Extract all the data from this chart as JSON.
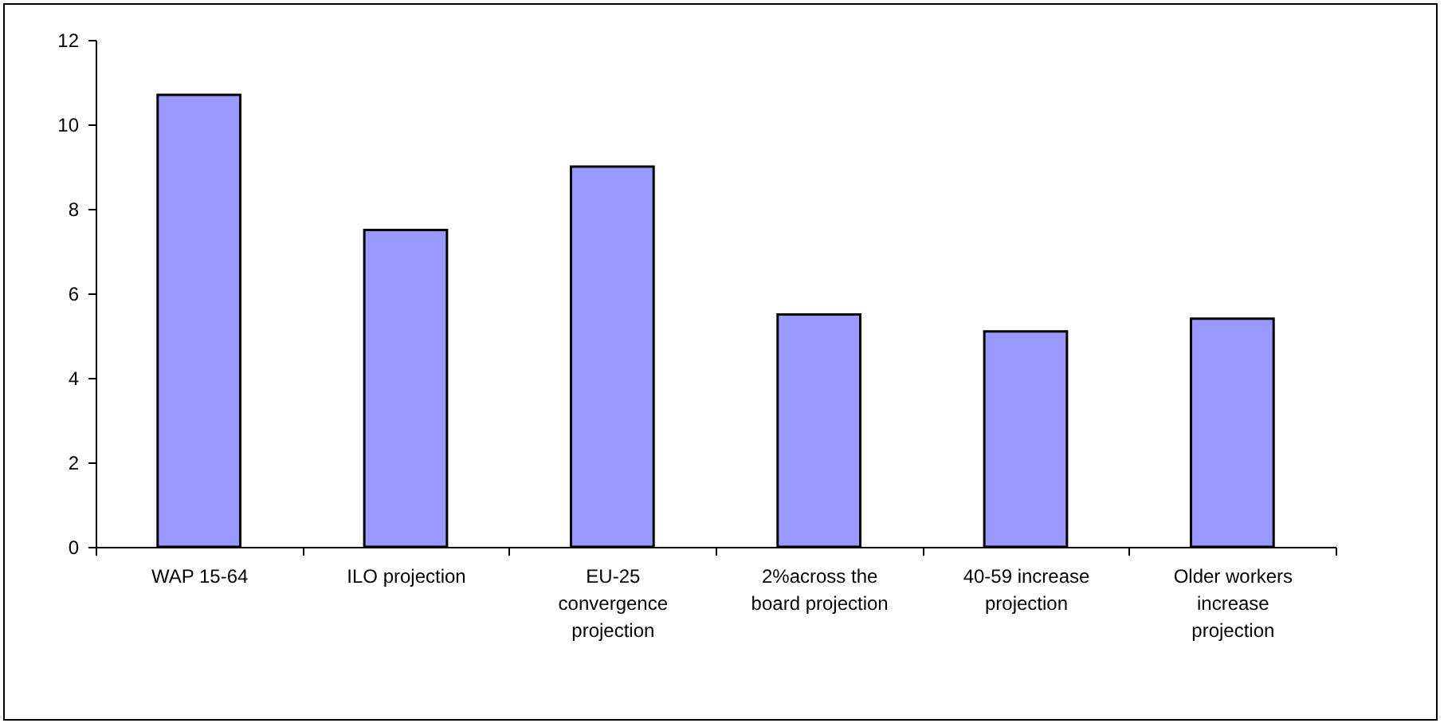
{
  "chart_data": {
    "type": "bar",
    "categories": [
      "WAP 15-64",
      "ILO projection",
      "EU-25 convergence projection",
      "2%across the board projection",
      "40-59 increase projection",
      "Older workers increase projection"
    ],
    "values": [
      10.7,
      7.5,
      9.0,
      5.5,
      5.1,
      5.4
    ],
    "color": "#9999ff",
    "ylim": [
      0,
      12
    ],
    "yticks": [
      0,
      2,
      4,
      6,
      8,
      10,
      12
    ],
    "grid": false
  }
}
